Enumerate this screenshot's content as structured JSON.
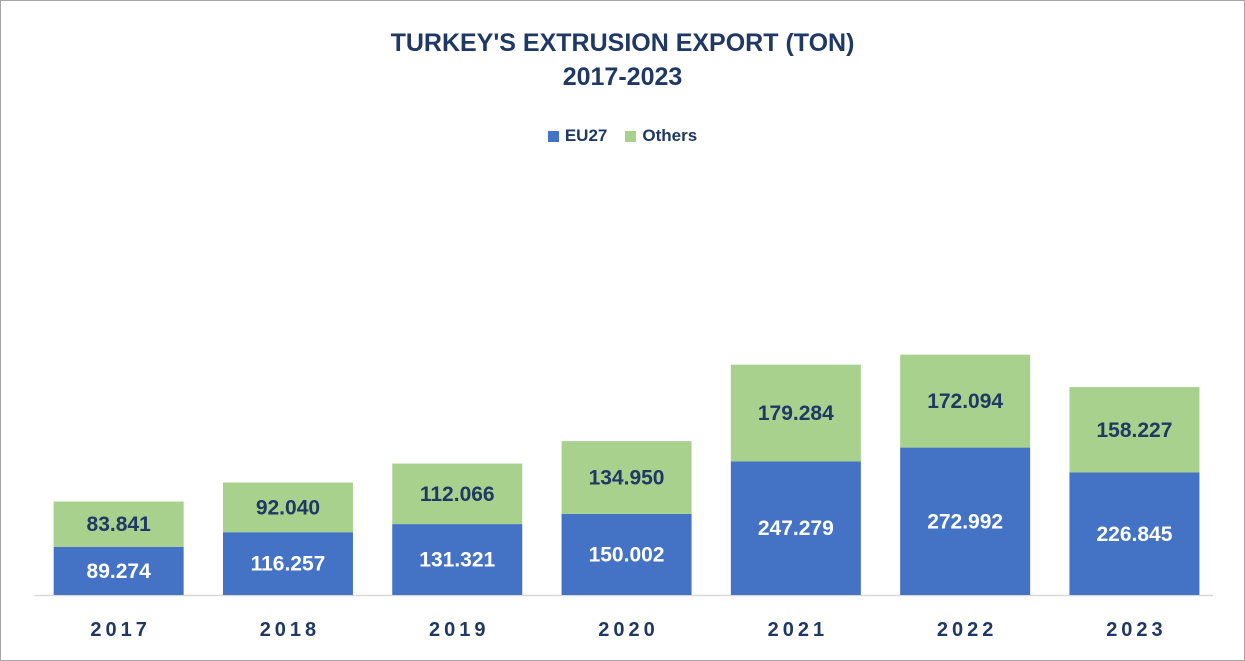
{
  "chart_data": {
    "type": "bar",
    "stacked": true,
    "title_line1": "TURKEY'S EXTRUSION EXPORT (TON)",
    "title_line2": "2017-2023",
    "categories": [
      "2017",
      "2018",
      "2019",
      "2020",
      "2021",
      "2022",
      "2023"
    ],
    "series": [
      {
        "name": "EU27",
        "color": "#4472c4",
        "values": [
          89274,
          116257,
          131321,
          150002,
          247279,
          272992,
          226845
        ],
        "labels": [
          "89.274",
          "116.257",
          "131.321",
          "150.002",
          "247.279",
          "272.992",
          "226.845"
        ],
        "label_color": "#ffffff"
      },
      {
        "name": "Others",
        "color": "#a9d18e",
        "values": [
          83841,
          92040,
          112066,
          134950,
          179284,
          172094,
          158227
        ],
        "labels": [
          "83.841",
          "92.040",
          "112.066",
          "134.950",
          "179.284",
          "172.094",
          "158.227"
        ],
        "label_color": "#1f3864"
      }
    ],
    "legend_position": "top",
    "gridlines": false,
    "xlabel": "",
    "ylabel": ""
  }
}
